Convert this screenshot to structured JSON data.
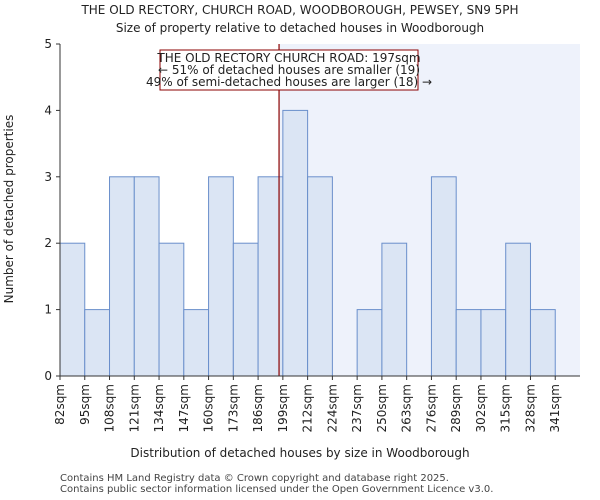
{
  "chart_data": {
    "type": "bar",
    "title": "THE OLD RECTORY, CHURCH ROAD, WOODBOROUGH, PEWSEY, SN9 5PH",
    "subtitle": "Size of property relative to detached houses in Woodborough",
    "xlabel": "Distribution of detached houses by size in Woodborough",
    "ylabel": "Number of detached properties",
    "categories": [
      "82sqm",
      "95sqm",
      "108sqm",
      "121sqm",
      "134sqm",
      "147sqm",
      "160sqm",
      "173sqm",
      "186sqm",
      "199sqm",
      "212sqm",
      "224sqm",
      "237sqm",
      "250sqm",
      "263sqm",
      "276sqm",
      "289sqm",
      "302sqm",
      "315sqm",
      "328sqm",
      "341sqm"
    ],
    "values": [
      2,
      1,
      3,
      3,
      2,
      1,
      3,
      2,
      3,
      4,
      3,
      0,
      1,
      2,
      0,
      3,
      1,
      1,
      2,
      1,
      0
    ],
    "ylim": [
      0,
      5
    ],
    "yticks": [
      0,
      1,
      2,
      3,
      4,
      5
    ],
    "marker": {
      "value_sqm": 197,
      "label_lines": [
        "THE OLD RECTORY CHURCH ROAD: 197sqm",
        "← 51% of detached houses are smaller (19)",
        "49% of semi-detached houses are larger (18) →"
      ]
    },
    "colors": {
      "bar_fill": "#dbe5f4",
      "bar_stroke": "#6a8fcb",
      "marker_line": "#8b0000",
      "shade": "#eef2fb"
    }
  },
  "footer": {
    "line1": "Contains HM Land Registry data © Crown copyright and database right 2025.",
    "line2": "Contains public sector information licensed under the Open Government Licence v3.0."
  }
}
